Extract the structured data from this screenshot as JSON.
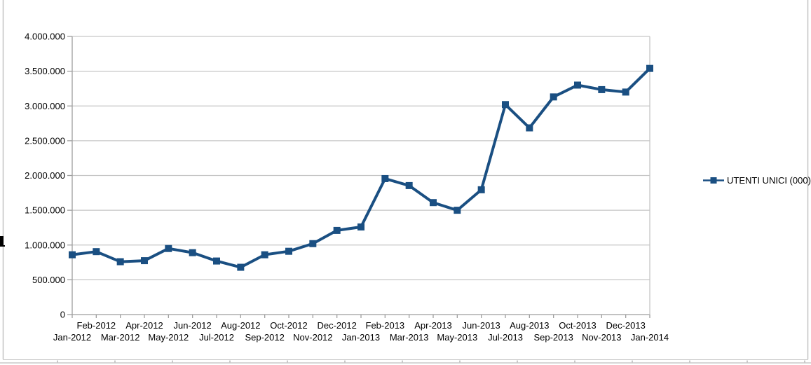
{
  "chart_data": {
    "type": "line",
    "title": "",
    "categories": [
      "Jan-2012",
      "Feb-2012",
      "Mar-2012",
      "Apr-2012",
      "May-2012",
      "Jun-2012",
      "Jul-2012",
      "Aug-2012",
      "Sep-2012",
      "Oct-2012",
      "Nov-2012",
      "Dec-2012",
      "Jan-2013",
      "Feb-2013",
      "Mar-2013",
      "Apr-2013",
      "May-2013",
      "Jun-2013",
      "Jul-2013",
      "Aug-2013",
      "Sep-2013",
      "Oct-2013",
      "Nov-2013",
      "Dec-2013",
      "Jan-2014"
    ],
    "series": [
      {
        "name": "UTENTI UNICI (000)",
        "values": [
          860000,
          905000,
          760000,
          775000,
          950000,
          890000,
          770000,
          680000,
          860000,
          910000,
          1020000,
          1210000,
          1260000,
          1955000,
          1855000,
          1610000,
          1500000,
          1795000,
          3020000,
          2685000,
          3130000,
          3300000,
          3235000,
          3200000,
          3540000
        ]
      }
    ],
    "xlabel": "",
    "ylabel": "",
    "ylim": [
      0,
      4000000
    ],
    "y_ticks": {
      "values": [
        0,
        500000,
        1000000,
        1500000,
        2000000,
        2500000,
        3000000,
        3500000,
        4000000
      ],
      "labels": [
        "0",
        "500.000",
        "1.000.000",
        "1.500.000",
        "2.000.000",
        "2.500.000",
        "3.000.000",
        "3.500.000",
        "4.000.000"
      ]
    },
    "grid": "horizontal",
    "legend_position": "right"
  },
  "legend": {
    "label": "UTENTI UNICI (000)"
  },
  "colors": {
    "series": "#1a4f82",
    "gridline": "#c6c6c6",
    "axis": "#9e9e9e",
    "text": "#000000",
    "frame_border": "#c2c2c2",
    "sheet_line": "#c9c9c9",
    "artifact": "#000000"
  }
}
